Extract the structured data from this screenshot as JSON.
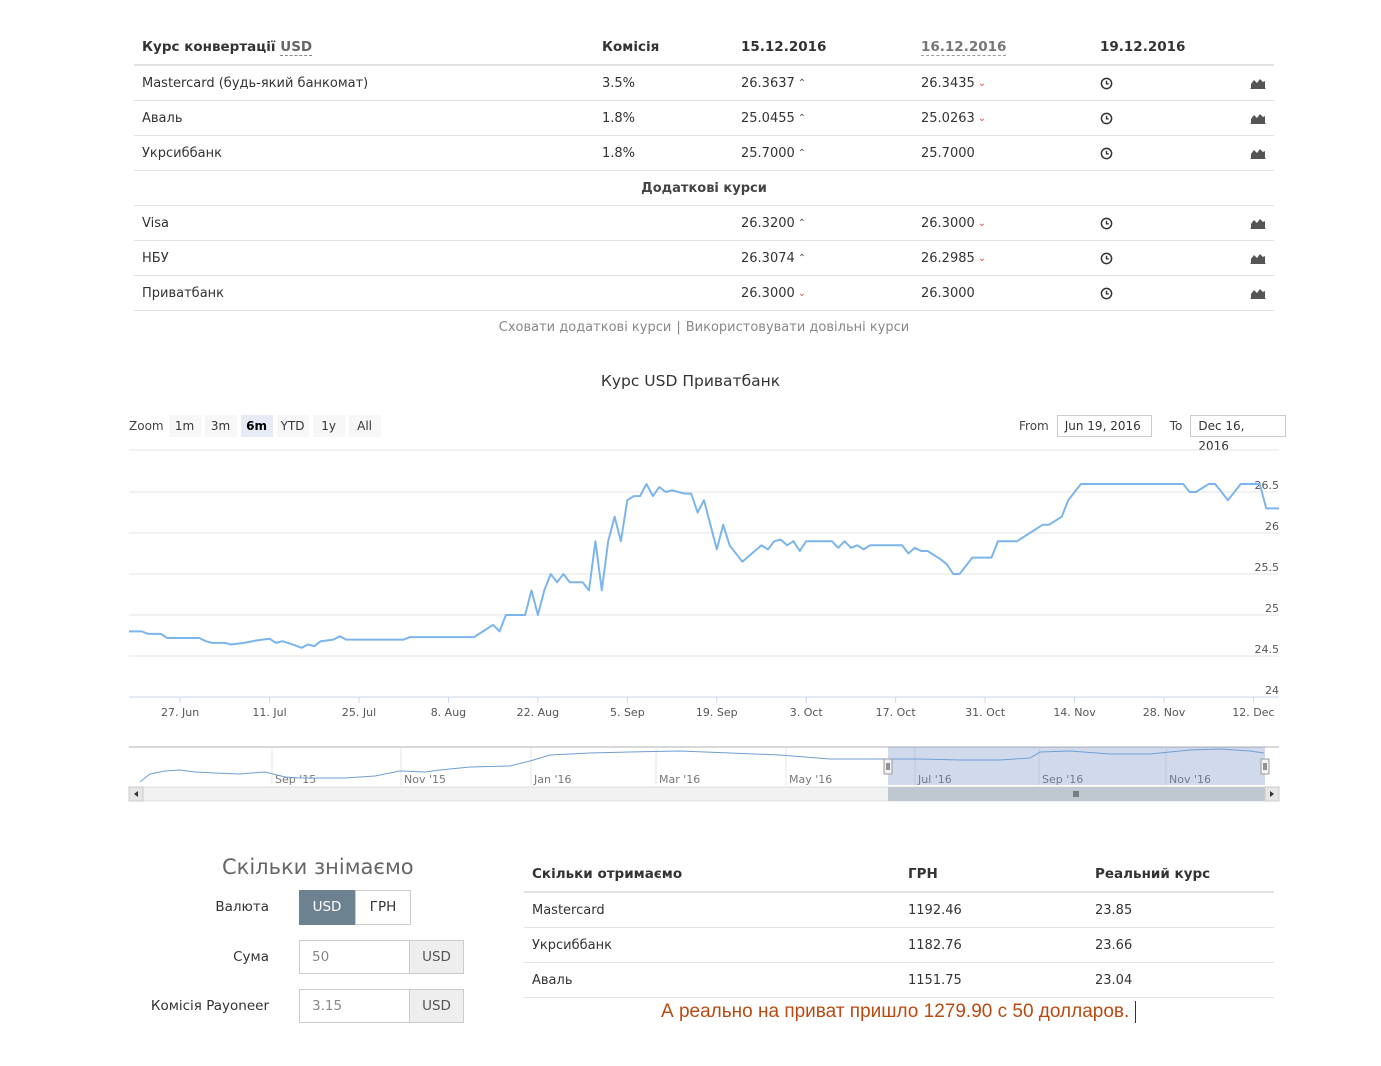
{
  "rates": {
    "header": {
      "name_prefix": "Курс конвертації",
      "currency": "USD",
      "fee": "Комісія",
      "date1": "15.12.2016",
      "date2": "16.12.2016",
      "date3": "19.12.2016"
    },
    "main_rows": [
      {
        "name": "Mastercard (будь-який банкомат)",
        "fee": "3.5%",
        "v1": "26.3637",
        "v1_trend": "up",
        "v2": "26.3435",
        "v2_trend": "down"
      },
      {
        "name": "Аваль",
        "fee": "1.8%",
        "v1": "25.0455",
        "v1_trend": "up",
        "v2": "25.0263",
        "v2_trend": "down"
      },
      {
        "name": "Укрсиббанк",
        "fee": "1.8%",
        "v1": "25.7000",
        "v1_trend": "up",
        "v2": "25.7000",
        "v2_trend": ""
      }
    ],
    "section_title": "Додаткові курси",
    "extra_rows": [
      {
        "name": "Visa",
        "fee": "",
        "v1": "26.3200",
        "v1_trend": "up",
        "v2": "26.3000",
        "v2_trend": "down"
      },
      {
        "name": "НБУ",
        "fee": "",
        "v1": "26.3074",
        "v1_trend": "up",
        "v2": "26.2985",
        "v2_trend": "down"
      },
      {
        "name": "Приватбанк",
        "fee": "",
        "v1": "26.3000",
        "v1_trend": "down",
        "v2": "26.3000",
        "v2_trend": ""
      }
    ],
    "icons": {
      "clock": "clock-icon",
      "chart": "area-chart-icon"
    },
    "links": {
      "hide_extra": "Сховати додаткові курси",
      "separator": "|",
      "custom": "Використовувати довільні курси"
    }
  },
  "chart": {
    "title": "Курс USD Приватбанк",
    "zoom_label": "Zoom",
    "zoom_buttons": [
      "1m",
      "3m",
      "6m",
      "YTD",
      "1y",
      "All"
    ],
    "zoom_active": "6m",
    "from_label": "From",
    "from_value": "Jun 19, 2016",
    "to_label": "To",
    "to_value": "Dec 16, 2016",
    "line_color": "#7cb5ec"
  },
  "chart_data": {
    "type": "line",
    "title": "Курс USD Приватбанк",
    "xlabel": "",
    "ylabel": "",
    "ylim": [
      24,
      26.5
    ],
    "y_ticks": [
      "24",
      "24.5",
      "25",
      "25.5",
      "26",
      "26.5"
    ],
    "x_ticks": [
      "27. Jun",
      "11. Jul",
      "25. Jul",
      "8. Aug",
      "22. Aug",
      "5. Sep",
      "19. Sep",
      "3. Oct",
      "17. Oct",
      "31. Oct",
      "14. Nov",
      "28. Nov",
      "12. Dec"
    ],
    "series": [
      {
        "values_xy": [
          [
            "2016-06-19",
            24.8
          ],
          [
            "2016-06-21",
            24.8
          ],
          [
            "2016-06-22",
            24.77
          ],
          [
            "2016-06-24",
            24.77
          ],
          [
            "2016-06-25",
            24.72
          ],
          [
            "2016-06-27",
            24.72
          ],
          [
            "2016-06-30",
            24.72
          ],
          [
            "2016-07-01",
            24.68
          ],
          [
            "2016-07-02",
            24.66
          ],
          [
            "2016-07-04",
            24.66
          ],
          [
            "2016-07-05",
            24.64
          ],
          [
            "2016-07-07",
            24.66
          ],
          [
            "2016-07-09",
            24.69
          ],
          [
            "2016-07-11",
            24.71
          ],
          [
            "2016-07-12",
            24.66
          ],
          [
            "2016-07-13",
            24.68
          ],
          [
            "2016-07-15",
            24.63
          ],
          [
            "2016-07-16",
            24.6
          ],
          [
            "2016-07-17",
            24.64
          ],
          [
            "2016-07-18",
            24.62
          ],
          [
            "2016-07-19",
            24.68
          ],
          [
            "2016-07-21",
            24.7
          ],
          [
            "2016-07-22",
            24.74
          ],
          [
            "2016-07-23",
            24.7
          ],
          [
            "2016-07-25",
            24.7
          ],
          [
            "2016-07-29",
            24.7
          ],
          [
            "2016-08-01",
            24.7
          ],
          [
            "2016-08-02",
            24.73
          ],
          [
            "2016-08-04",
            24.73
          ],
          [
            "2016-08-08",
            24.73
          ],
          [
            "2016-08-12",
            24.73
          ],
          [
            "2016-08-13",
            24.78
          ],
          [
            "2016-08-15",
            24.88
          ],
          [
            "2016-08-16",
            24.8
          ],
          [
            "2016-08-17",
            25.0
          ],
          [
            "2016-08-20",
            25.0
          ],
          [
            "2016-08-21",
            25.3
          ],
          [
            "2016-08-22",
            25.0
          ],
          [
            "2016-08-23",
            25.3
          ],
          [
            "2016-08-24",
            25.5
          ],
          [
            "2016-08-25",
            25.4
          ],
          [
            "2016-08-26",
            25.5
          ],
          [
            "2016-08-27",
            25.4
          ],
          [
            "2016-08-29",
            25.4
          ],
          [
            "2016-08-30",
            25.3
          ],
          [
            "2016-08-31",
            25.9
          ],
          [
            "2016-09-01",
            25.3
          ],
          [
            "2016-09-02",
            25.9
          ],
          [
            "2016-09-03",
            26.2
          ],
          [
            "2016-09-04",
            25.9
          ],
          [
            "2016-09-05",
            26.4
          ],
          [
            "2016-09-06",
            26.45
          ],
          [
            "2016-09-07",
            26.45
          ],
          [
            "2016-09-08",
            26.6
          ],
          [
            "2016-09-09",
            26.45
          ],
          [
            "2016-09-10",
            26.56
          ],
          [
            "2016-09-11",
            26.5
          ],
          [
            "2016-09-12",
            26.52
          ],
          [
            "2016-09-14",
            26.48
          ],
          [
            "2016-09-15",
            26.48
          ],
          [
            "2016-09-16",
            26.25
          ],
          [
            "2016-09-17",
            26.4
          ],
          [
            "2016-09-18",
            26.1
          ],
          [
            "2016-09-19",
            25.8
          ],
          [
            "2016-09-20",
            26.1
          ],
          [
            "2016-09-21",
            25.85
          ],
          [
            "2016-09-23",
            25.65
          ],
          [
            "2016-09-26",
            25.85
          ],
          [
            "2016-09-27",
            25.8
          ],
          [
            "2016-09-28",
            25.9
          ],
          [
            "2016-09-29",
            25.92
          ],
          [
            "2016-09-30",
            25.85
          ],
          [
            "2016-10-01",
            25.9
          ],
          [
            "2016-10-02",
            25.78
          ],
          [
            "2016-10-03",
            25.9
          ],
          [
            "2016-10-06",
            25.9
          ],
          [
            "2016-10-07",
            25.9
          ],
          [
            "2016-10-08",
            25.82
          ],
          [
            "2016-10-09",
            25.9
          ],
          [
            "2016-10-10",
            25.82
          ],
          [
            "2016-10-11",
            25.85
          ],
          [
            "2016-10-12",
            25.8
          ],
          [
            "2016-10-13",
            25.85
          ],
          [
            "2016-10-17",
            25.85
          ],
          [
            "2016-10-18",
            25.85
          ],
          [
            "2016-10-19",
            25.75
          ],
          [
            "2016-10-20",
            25.82
          ],
          [
            "2016-10-21",
            25.78
          ],
          [
            "2016-10-22",
            25.78
          ],
          [
            "2016-10-24",
            25.68
          ],
          [
            "2016-10-25",
            25.62
          ],
          [
            "2016-10-26",
            25.5
          ],
          [
            "2016-10-27",
            25.5
          ],
          [
            "2016-10-29",
            25.7
          ],
          [
            "2016-11-01",
            25.7
          ],
          [
            "2016-11-02",
            25.9
          ],
          [
            "2016-11-05",
            25.9
          ],
          [
            "2016-11-07",
            26.0
          ],
          [
            "2016-11-09",
            26.1
          ],
          [
            "2016-11-10",
            26.1
          ],
          [
            "2016-11-12",
            26.2
          ],
          [
            "2016-11-13",
            26.4
          ],
          [
            "2016-11-15",
            26.6
          ],
          [
            "2016-11-16",
            26.7
          ],
          [
            "2016-11-18",
            26.6
          ],
          [
            "2016-11-19",
            26.6
          ],
          [
            "2016-11-21",
            26.7
          ],
          [
            "2016-11-22",
            26.7
          ],
          [
            "2016-11-24",
            26.6
          ],
          [
            "2016-11-25",
            26.6
          ],
          [
            "2016-11-26",
            26.6
          ],
          [
            "2016-11-28",
            26.7
          ],
          [
            "2016-12-01",
            26.7
          ],
          [
            "2016-12-02",
            26.5
          ],
          [
            "2016-12-03",
            26.5
          ],
          [
            "2016-12-05",
            26.7
          ],
          [
            "2016-12-06",
            26.7
          ],
          [
            "2016-12-07",
            26.5
          ],
          [
            "2016-12-08",
            26.4
          ],
          [
            "2016-12-10",
            26.6
          ],
          [
            "2016-12-13",
            26.6
          ],
          [
            "2016-12-14",
            26.3
          ],
          [
            "2016-12-15",
            26.3
          ],
          [
            "2016-12-16",
            26.3
          ]
        ]
      }
    ],
    "navigator": {
      "x_ticks": [
        "Sep '15",
        "Nov '15",
        "Jan '16",
        "Mar '16",
        "May '16",
        "Jul '16",
        "Sep '16",
        "Nov '16"
      ]
    }
  },
  "calc": {
    "title": "Скільки знімаємо",
    "currency_label": "Валюта",
    "currency_options": [
      "USD",
      "ГРН"
    ],
    "currency_active": "USD",
    "amount_label": "Сума",
    "amount_value": "50",
    "amount_unit": "USD",
    "fee_label": "Комісія Payoneer",
    "fee_value": "3.15",
    "fee_unit": "USD"
  },
  "result": {
    "headers": [
      "Скільки отримаємо",
      "ГРН",
      "Реальний курс"
    ],
    "rows": [
      [
        "Mastercard",
        "1192.46",
        "23.85"
      ],
      [
        "Укрсиббанк",
        "1182.76",
        "23.66"
      ],
      [
        "Аваль",
        "1151.75",
        "23.04"
      ]
    ],
    "note": "А реально на приват пришло 1279.90 с 50 долларов."
  }
}
